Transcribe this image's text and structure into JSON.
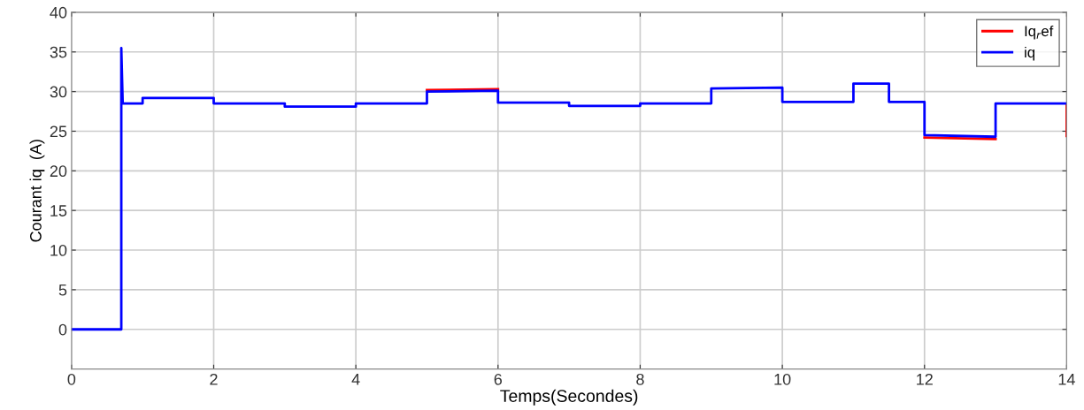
{
  "chart_data": {
    "type": "line",
    "xlabel": "Temps(Secondes)",
    "ylabel": "Courant iq  (A)",
    "xlim": [
      0,
      14
    ],
    "xticks": [
      0,
      2,
      4,
      6,
      8,
      10,
      12,
      14
    ],
    "ylim": [
      -5,
      40
    ],
    "yticks": [
      0,
      5,
      10,
      15,
      20,
      25,
      30,
      35,
      40
    ],
    "grid": true,
    "legend": "top right",
    "line_style": "solid",
    "marker": "none",
    "series": [
      {
        "name": "Iq$_{r}$ef",
        "color": "#ff0000",
        "x": [
          5.0,
          6.0,
          null,
          12.0,
          13.0,
          null,
          14.0,
          14.0
        ],
        "values": [
          30.2,
          30.3,
          null,
          24.2,
          24.0,
          null,
          28.3,
          24.4
        ]
      },
      {
        "name": "iq",
        "color": "#0000ff",
        "x": [
          0,
          0.7,
          0.7,
          0.72,
          1.0,
          1.0,
          2.0,
          2.0,
          3.0,
          3.0,
          4.0,
          4.0,
          5.0,
          5.0,
          6.0,
          6.0,
          7.0,
          7.0,
          8.0,
          8.0,
          9.0,
          9.0,
          10.0,
          10.0,
          11.0,
          11.0,
          11.5,
          11.5,
          12.0,
          12.0,
          13.0,
          13.0,
          14.0
        ],
        "values": [
          0,
          0,
          35.5,
          28.5,
          28.5,
          29.2,
          29.2,
          28.5,
          28.5,
          28.1,
          28.1,
          28.5,
          28.5,
          30.0,
          30.1,
          28.6,
          28.6,
          28.2,
          28.2,
          28.5,
          28.5,
          30.4,
          30.5,
          28.7,
          28.7,
          31.0,
          31.0,
          28.7,
          28.7,
          24.5,
          24.3,
          28.5,
          28.5
        ]
      }
    ]
  }
}
